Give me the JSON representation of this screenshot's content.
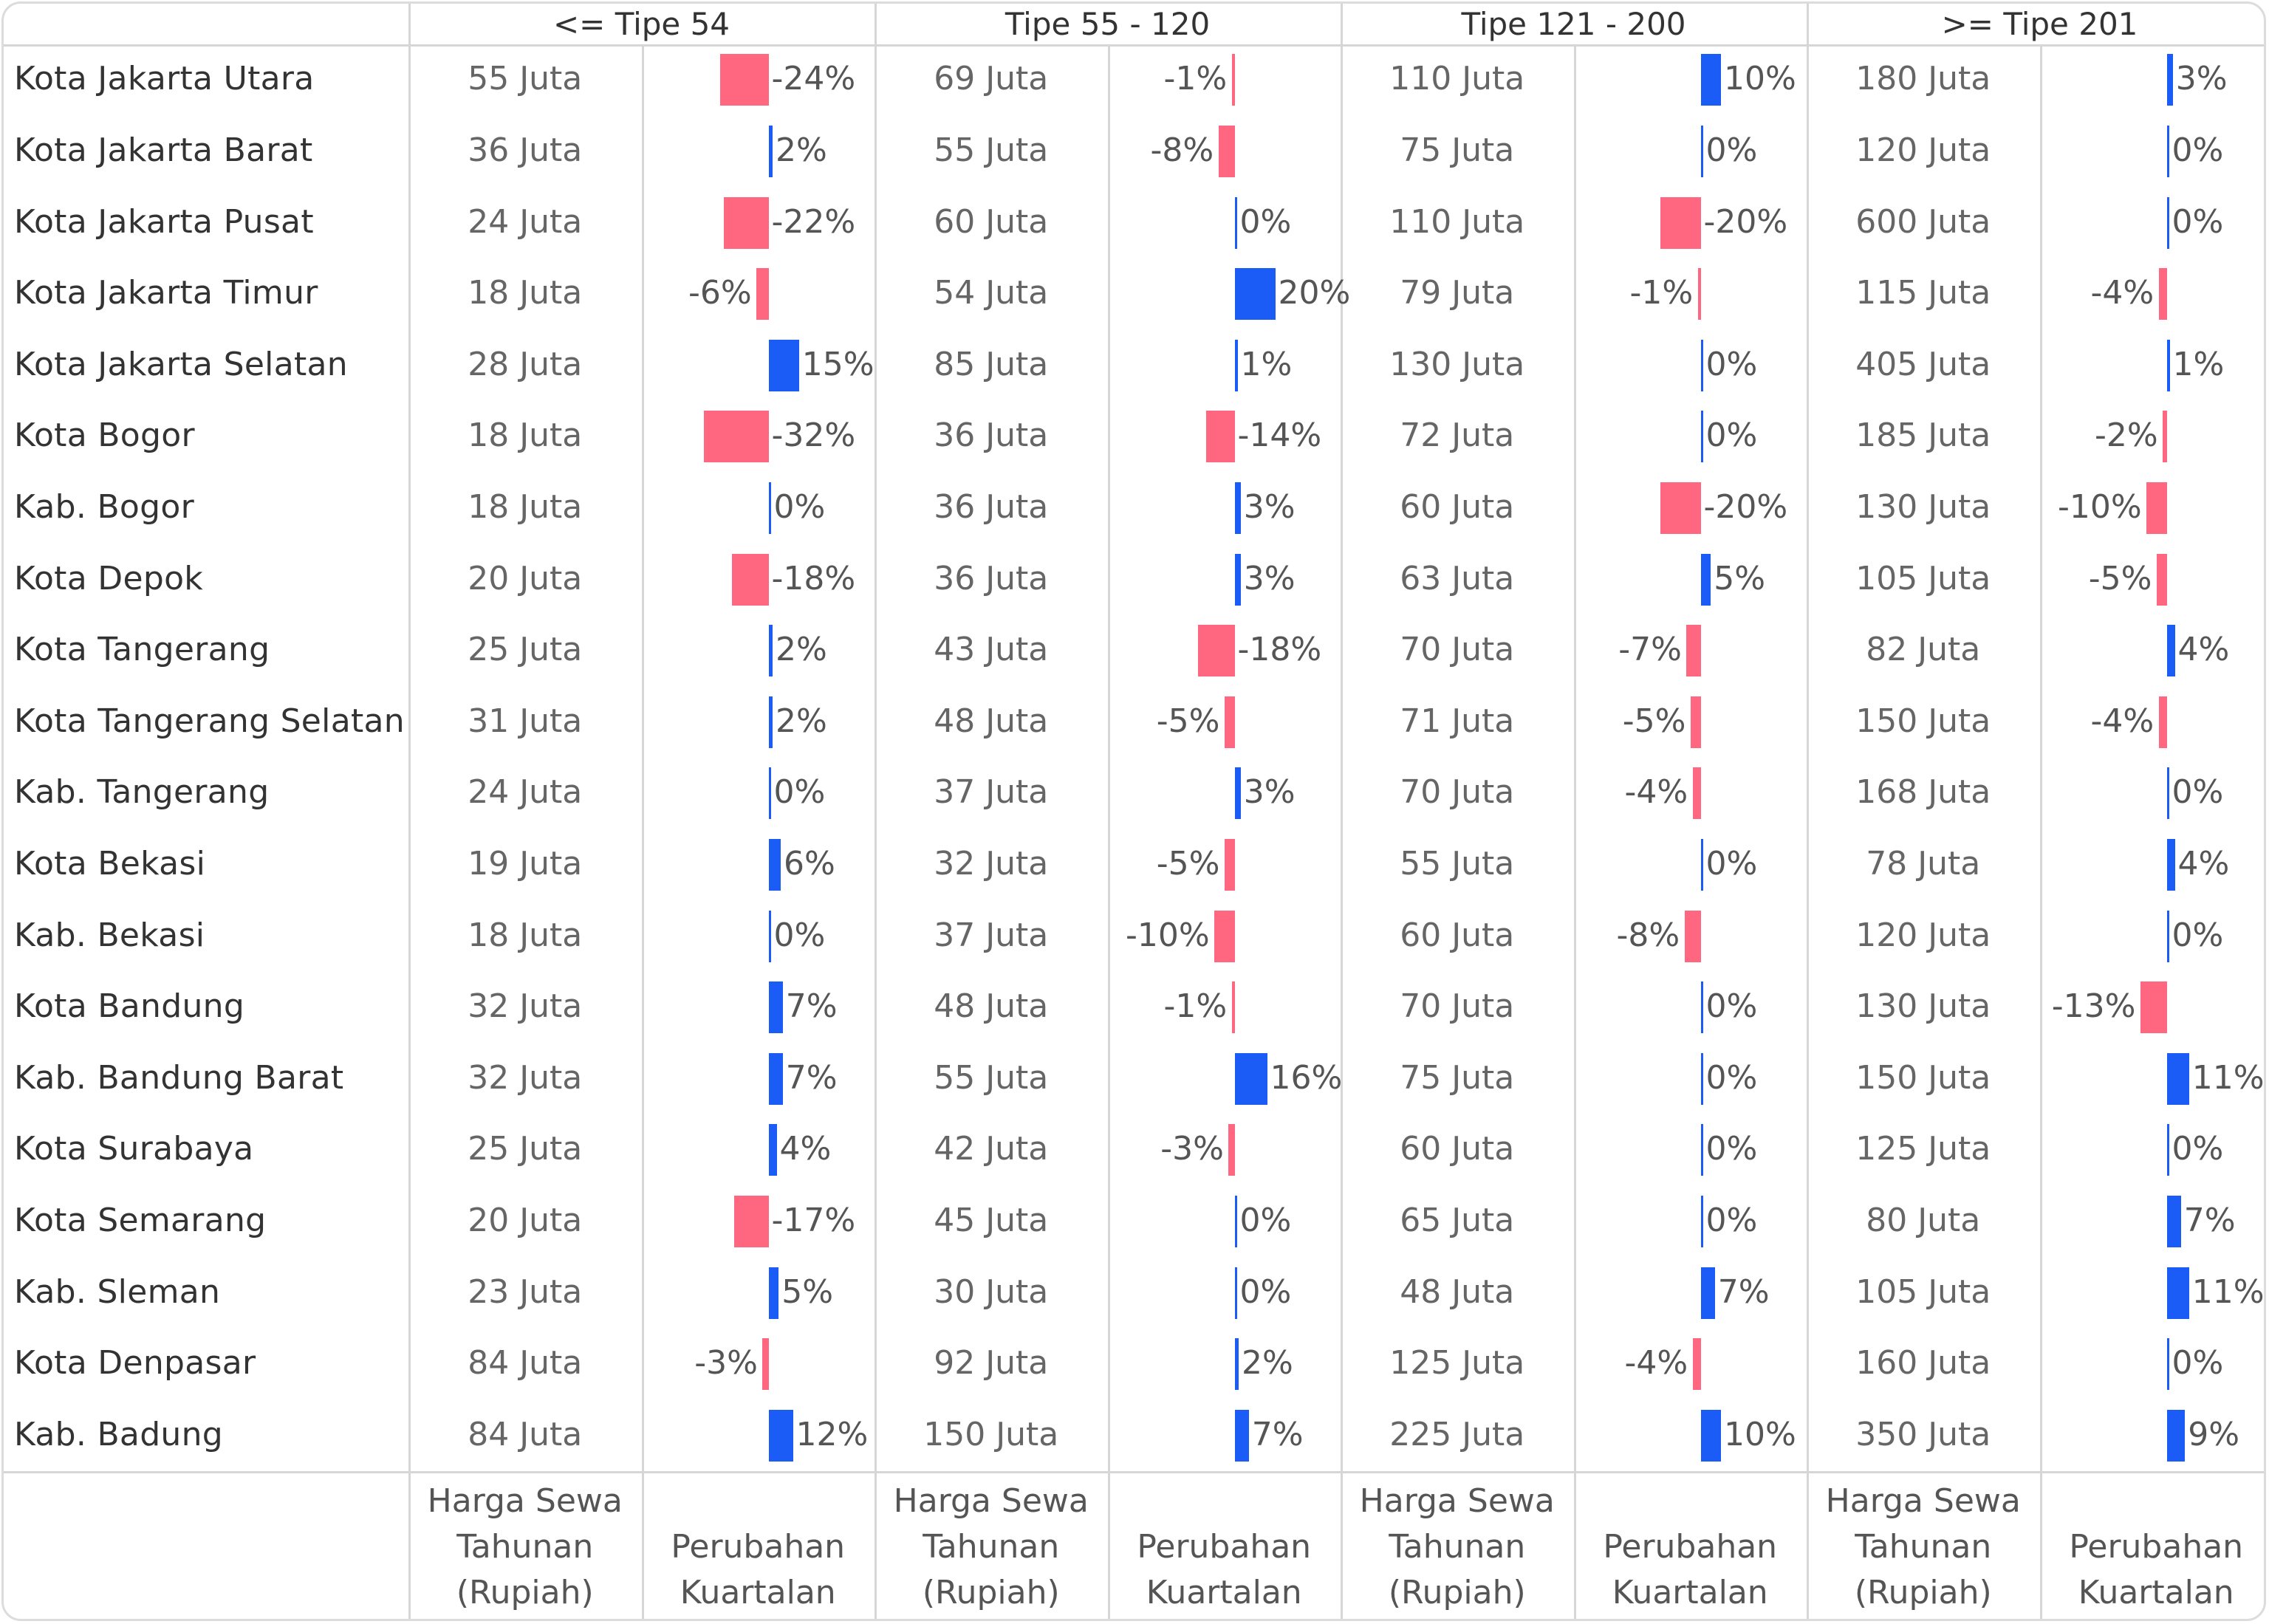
{
  "chart_data": {
    "type": "table",
    "column_groups": [
      "<= Tipe 54",
      "Tipe 55 - 120",
      "Tipe 121 - 200",
      ">= Tipe 201"
    ],
    "measures": [
      "Harga Sewa\nTahunan\n(Rupiah)",
      "Perubahan\nKuartalan"
    ],
    "value_unit": "Juta",
    "colors": {
      "positive": "#1a5cf5",
      "negative": "#ff6680"
    },
    "rows": [
      {
        "label": "Kota Jakarta Utara",
        "price": [
          55,
          69,
          110,
          180
        ],
        "change": [
          -24,
          -1,
          10,
          3
        ]
      },
      {
        "label": "Kota Jakarta Barat",
        "price": [
          36,
          55,
          75,
          120
        ],
        "change": [
          2,
          -8,
          0,
          0
        ]
      },
      {
        "label": "Kota Jakarta Pusat",
        "price": [
          24,
          60,
          110,
          600
        ],
        "change": [
          -22,
          0,
          -20,
          0
        ]
      },
      {
        "label": "Kota Jakarta Timur",
        "price": [
          18,
          54,
          79,
          115
        ],
        "change": [
          -6,
          20,
          -1,
          -4
        ]
      },
      {
        "label": "Kota Jakarta Selatan",
        "price": [
          28,
          85,
          130,
          405
        ],
        "change": [
          15,
          1,
          0,
          1
        ]
      },
      {
        "label": "Kota Bogor",
        "price": [
          18,
          36,
          72,
          185
        ],
        "change": [
          -32,
          -14,
          0,
          -2
        ]
      },
      {
        "label": "Kab. Bogor",
        "price": [
          18,
          36,
          60,
          130
        ],
        "change": [
          0,
          3,
          -20,
          -10
        ]
      },
      {
        "label": "Kota Depok",
        "price": [
          20,
          36,
          63,
          105
        ],
        "change": [
          -18,
          3,
          5,
          -5
        ]
      },
      {
        "label": "Kota Tangerang",
        "price": [
          25,
          43,
          70,
          82
        ],
        "change": [
          2,
          -18,
          -7,
          4
        ]
      },
      {
        "label": "Kota Tangerang Selatan",
        "price": [
          31,
          48,
          71,
          150
        ],
        "change": [
          2,
          -5,
          -5,
          -4
        ]
      },
      {
        "label": "Kab. Tangerang",
        "price": [
          24,
          37,
          70,
          168
        ],
        "change": [
          0,
          3,
          -4,
          0
        ]
      },
      {
        "label": "Kota Bekasi",
        "price": [
          19,
          32,
          55,
          78
        ],
        "change": [
          6,
          -5,
          0,
          4
        ]
      },
      {
        "label": "Kab. Bekasi",
        "price": [
          18,
          37,
          60,
          120
        ],
        "change": [
          0,
          -10,
          -8,
          0
        ]
      },
      {
        "label": "Kota Bandung",
        "price": [
          32,
          48,
          70,
          130
        ],
        "change": [
          7,
          -1,
          0,
          -13
        ]
      },
      {
        "label": "Kab. Bandung Barat",
        "price": [
          32,
          55,
          75,
          150
        ],
        "change": [
          7,
          16,
          0,
          11
        ]
      },
      {
        "label": "Kota Surabaya",
        "price": [
          25,
          42,
          60,
          125
        ],
        "change": [
          4,
          -3,
          0,
          0
        ]
      },
      {
        "label": "Kota Semarang",
        "price": [
          20,
          45,
          65,
          80
        ],
        "change": [
          -17,
          0,
          0,
          7
        ]
      },
      {
        "label": "Kab. Sleman",
        "price": [
          23,
          30,
          48,
          105
        ],
        "change": [
          5,
          0,
          7,
          11
        ]
      },
      {
        "label": "Kota Denpasar",
        "price": [
          84,
          92,
          125,
          160
        ],
        "change": [
          -3,
          2,
          -4,
          0
        ]
      },
      {
        "label": "Kab. Badung",
        "price": [
          84,
          150,
          225,
          350
        ],
        "change": [
          12,
          7,
          10,
          9
        ]
      }
    ]
  }
}
